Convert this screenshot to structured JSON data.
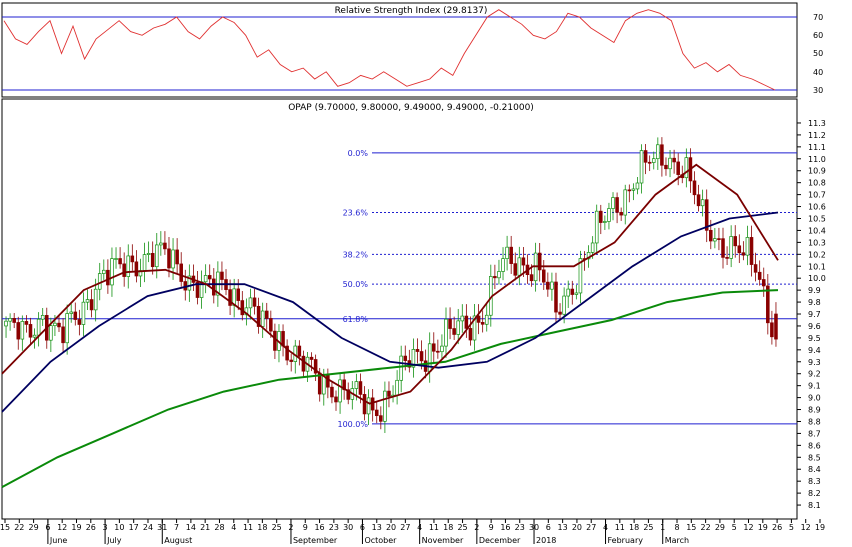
{
  "chart_data": {
    "type": "candlestick",
    "title": "OPAP (9.70000, 9.80000, 9.49000, 9.49000, -0.21000)",
    "ylim": [
      8.0,
      11.35
    ],
    "y_ticks": [
      "8.1",
      "8.2",
      "8.3",
      "8.4",
      "8.5",
      "8.6",
      "8.7",
      "8.8",
      "8.9",
      "9.0",
      "9.1",
      "9.2",
      "9.3",
      "9.4",
      "9.5",
      "9.6",
      "9.7",
      "9.8",
      "9.9",
      "10.0",
      "10.1",
      "10.2",
      "10.3",
      "10.4",
      "10.5",
      "10.6",
      "10.7",
      "10.8",
      "10.9",
      "11.0",
      "11.1",
      "11.2",
      "11.3"
    ],
    "x_day_labels": [
      "15",
      "22",
      "29",
      "6",
      "12",
      "19",
      "26",
      "3",
      "10",
      "17",
      "24",
      "31",
      "7",
      "14",
      "21",
      "28",
      "4",
      "11",
      "18",
      "25",
      "2",
      "9",
      "16",
      "23",
      "30",
      "6",
      "13",
      "20",
      "27",
      "4",
      "11",
      "18",
      "25",
      "2",
      "9",
      "16",
      "23",
      "30",
      "6",
      "13",
      "20",
      "27",
      "4",
      "11",
      "18",
      "25",
      "1",
      "8",
      "15",
      "22",
      "29",
      "5",
      "12",
      "19",
      "26",
      "5",
      "12",
      "19"
    ],
    "x_month_labels": [
      "June",
      "July",
      "August",
      "September",
      "October",
      "November",
      "December",
      "2018",
      "February",
      "March"
    ],
    "close_path": [
      [
        "2017-05-15",
        9.6
      ],
      [
        "2017-05-22",
        9.5
      ],
      [
        "2017-05-29",
        9.7
      ],
      [
        "2017-06-06",
        9.5
      ],
      [
        "2017-06-12",
        9.7
      ],
      [
        "2017-06-19",
        10.0
      ],
      [
        "2017-06-26",
        10.05
      ],
      [
        "2017-07-03",
        10.15
      ],
      [
        "2017-07-10",
        10.2
      ],
      [
        "2017-07-17",
        10.15
      ],
      [
        "2017-07-24",
        10.0
      ],
      [
        "2017-07-31",
        9.9
      ],
      [
        "2017-08-07",
        9.95
      ],
      [
        "2017-08-14",
        9.8
      ],
      [
        "2017-08-21",
        9.6
      ],
      [
        "2017-08-28",
        9.5
      ],
      [
        "2017-09-04",
        9.3
      ],
      [
        "2017-09-11",
        9.15
      ],
      [
        "2017-09-18",
        9.1
      ],
      [
        "2017-09-25",
        9.0
      ],
      [
        "2017-10-02",
        8.9
      ],
      [
        "2017-10-09",
        9.05
      ],
      [
        "2017-10-16",
        9.3
      ],
      [
        "2017-10-23",
        9.4
      ],
      [
        "2017-10-30",
        9.5
      ],
      [
        "2017-11-06",
        9.6
      ],
      [
        "2017-11-13",
        9.7
      ],
      [
        "2017-11-20",
        10.1
      ],
      [
        "2017-11-27",
        10.15
      ],
      [
        "2017-12-04",
        10.1
      ],
      [
        "2017-12-11",
        9.7
      ],
      [
        "2017-12-18",
        10.0
      ],
      [
        "2017-12-25",
        10.3
      ],
      [
        "2018-01-01",
        10.6
      ],
      [
        "2018-01-08",
        10.75
      ],
      [
        "2018-01-15",
        10.95
      ],
      [
        "2018-01-22",
        11.05
      ],
      [
        "2018-01-29",
        10.9
      ],
      [
        "2018-02-05",
        10.5
      ],
      [
        "2018-02-12",
        10.3
      ],
      [
        "2018-02-19",
        10.2
      ],
      [
        "2018-02-26",
        10.1
      ],
      [
        "2018-03-05",
        9.49
      ]
    ],
    "series": [
      {
        "name": "",
        "color": "#7a0000",
        "values": [
          9.2,
          9.55,
          9.9,
          10.05,
          10.07,
          9.95,
          9.7,
          9.4,
          9.15,
          8.95,
          9.05,
          9.4,
          9.85,
          10.1,
          10.1,
          10.3,
          10.7,
          10.95,
          10.7,
          10.15
        ]
      },
      {
        "name": "",
        "color": "#000060",
        "values": [
          8.88,
          9.3,
          9.6,
          9.85,
          9.95,
          9.95,
          9.8,
          9.5,
          9.3,
          9.25,
          9.3,
          9.5,
          9.8,
          10.1,
          10.35,
          10.5,
          10.55
        ]
      },
      {
        "name": "",
        "color": "#0a8a0a",
        "values": [
          8.25,
          8.5,
          8.7,
          8.9,
          9.05,
          9.15,
          9.2,
          9.25,
          9.3,
          9.45,
          9.55,
          9.65,
          9.8,
          9.88,
          9.9
        ]
      }
    ],
    "fibonacci": {
      "levels": [
        {
          "label": "0.0%",
          "value": 11.05
        },
        {
          "label": "23.6%",
          "value": 10.55
        },
        {
          "label": "38.2%",
          "value": 10.2
        },
        {
          "label": "50.0%",
          "value": 9.95
        },
        {
          "label": "61.8%",
          "value": 9.66
        },
        {
          "label": "100.0%",
          "value": 8.78
        }
      ]
    },
    "indicator": {
      "title": "Relative Strength Index (29.8137)",
      "ylim": [
        26,
        78
      ],
      "ticks": [
        "30",
        "40",
        "50",
        "60",
        "70"
      ],
      "bands": [
        70,
        30
      ],
      "values": [
        68,
        58,
        55,
        62,
        68,
        50,
        65,
        47,
        58,
        63,
        68,
        62,
        60,
        64,
        66,
        70,
        62,
        58,
        65,
        70,
        67,
        60,
        48,
        52,
        44,
        40,
        42,
        36,
        40,
        32,
        34,
        38,
        36,
        40,
        36,
        32,
        34,
        36,
        42,
        38,
        50,
        60,
        70,
        74,
        70,
        66,
        60,
        58,
        62,
        72,
        70,
        64,
        60,
        56,
        68,
        72,
        74,
        72,
        68,
        50,
        42,
        45,
        40,
        44,
        38,
        36,
        33,
        30
      ]
    }
  }
}
